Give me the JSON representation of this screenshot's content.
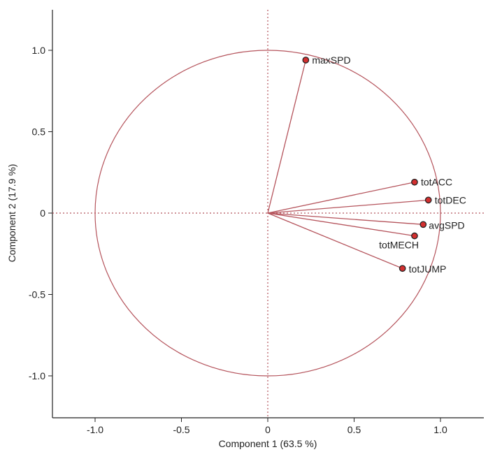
{
  "chart_data": {
    "type": "scatter",
    "subtype": "pca-loading-plot",
    "title": "",
    "xlabel": "Component 1  (63.5 %)",
    "ylabel": "Component 2  (17.9 %)",
    "xlim": [
      -1.25,
      1.25
    ],
    "ylim": [
      -1.25,
      1.25
    ],
    "xticks": [
      -1.0,
      -0.5,
      0.0,
      0.5,
      1.0
    ],
    "yticks": [
      -1.0,
      -0.5,
      0.0,
      0.5,
      1.0
    ],
    "xtick_labels": [
      "-1.0",
      "-0.5",
      "0",
      "0.5",
      "1.0"
    ],
    "ytick_labels": [
      "-1.0",
      "-0.5",
      "0",
      "0.5",
      "1.0"
    ],
    "grid": false,
    "reference_lines": "dashed at x=0 and y=0",
    "unit_circle_radius": 1.0,
    "colors": {
      "vector": "#b5545c",
      "circle": "#b5545c",
      "point_fill": "#d32f2f",
      "point_stroke": "#222222",
      "axis": "#222222",
      "text": "#222222"
    },
    "series": [
      {
        "points": [
          {
            "label": "maxSPD",
            "x": 0.22,
            "y": 0.94
          },
          {
            "label": "totACC",
            "x": 0.85,
            "y": 0.19
          },
          {
            "label": "totDEC",
            "x": 0.93,
            "y": 0.08
          },
          {
            "label": "avgSPD",
            "x": 0.9,
            "y": -0.07
          },
          {
            "label": "totMECH",
            "x": 0.85,
            "y": -0.14
          },
          {
            "label": "totJUMP",
            "x": 0.78,
            "y": -0.34
          }
        ]
      }
    ]
  }
}
